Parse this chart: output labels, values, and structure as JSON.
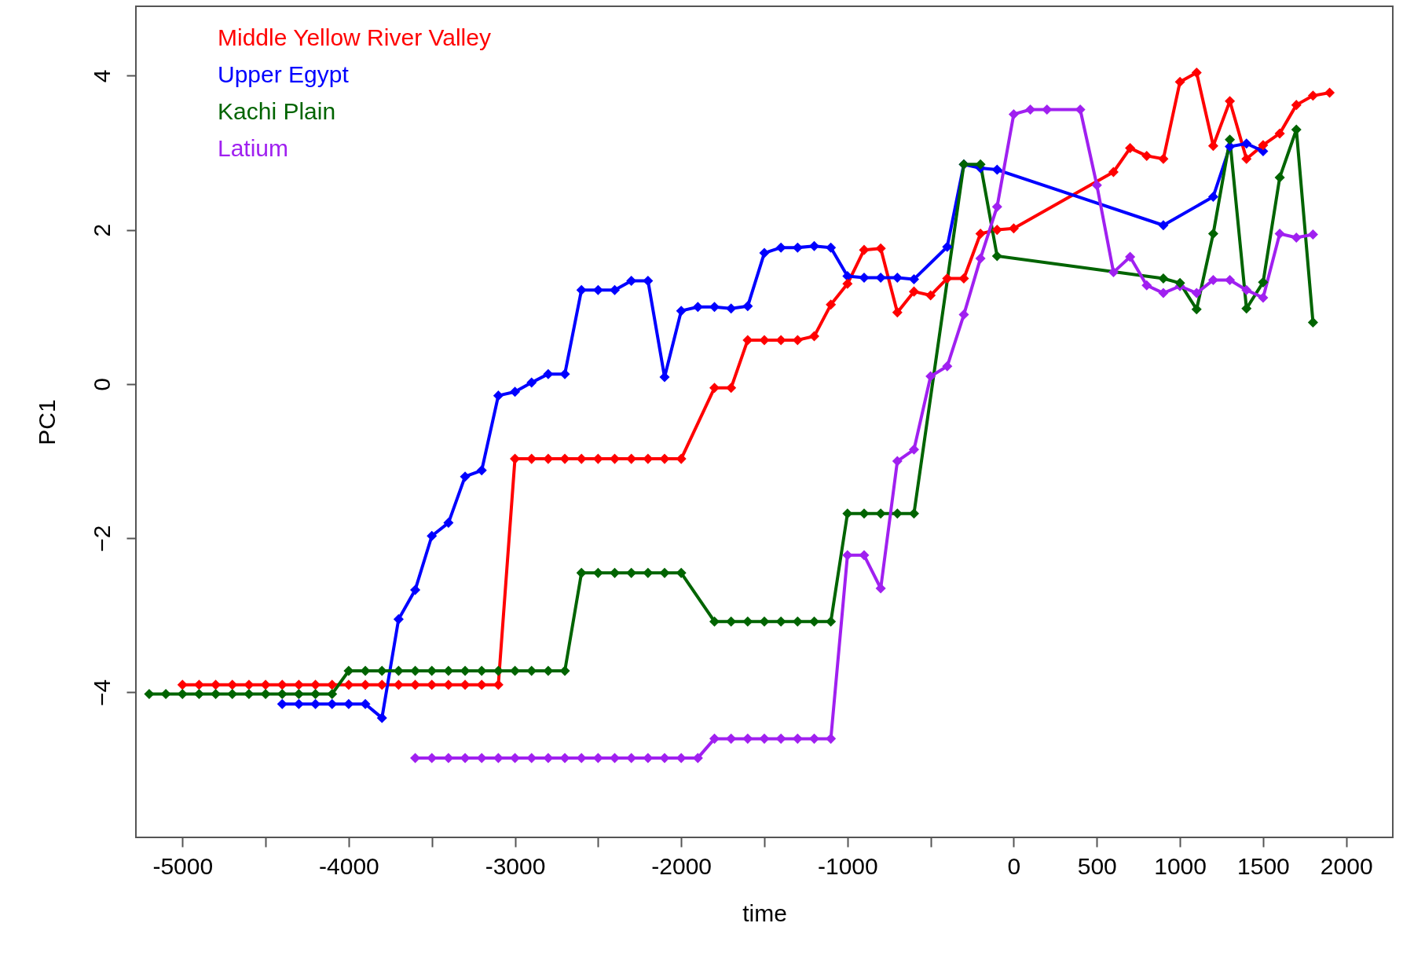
{
  "chart_data": {
    "type": "line",
    "xlabel": "time",
    "ylabel": "PC1",
    "xlim": [
      -5280,
      2280
    ],
    "ylim": [
      -5.88,
      4.9
    ],
    "xticks": [
      -5000,
      {
        "value": -4500,
        "label": null
      },
      -4000,
      {
        "value": -3500,
        "label": null
      },
      -3000,
      {
        "value": -2500,
        "label": null
      },
      -2000,
      {
        "value": -1500,
        "label": null
      },
      -1000,
      {
        "value": -500,
        "label": null
      },
      0,
      500,
      1000,
      1500,
      2000
    ],
    "yticks": [
      -4,
      -2,
      0,
      2,
      4
    ],
    "grid": false,
    "legend": "top left",
    "marker": "diamond",
    "line_style": "solid",
    "series": [
      {
        "name": "Middle Yellow River Valley",
        "color": "#ff0000",
        "x": [
          -5000,
          -4900,
          -4800,
          -4700,
          -4600,
          -4500,
          -4400,
          -4300,
          -4200,
          -4100,
          -4000,
          -3900,
          -3800,
          -3700,
          -3600,
          -3500,
          -3400,
          -3300,
          -3200,
          -3100,
          -3000,
          -2900,
          -2800,
          -2700,
          -2600,
          -2500,
          -2400,
          -2300,
          -2200,
          -2100,
          -2000,
          -1800,
          -1700,
          -1600,
          -1500,
          -1400,
          -1300,
          -1200,
          -1100,
          -1000,
          -900,
          -800,
          -700,
          -600,
          -500,
          -400,
          -300,
          -200,
          -100,
          0,
          600,
          700,
          800,
          900,
          1000,
          1100,
          1200,
          1300,
          1400,
          1500,
          1600,
          1700,
          1800,
          1900
        ],
        "values": [
          -3.9,
          -3.9,
          -3.9,
          -3.9,
          -3.9,
          -3.9,
          -3.9,
          -3.9,
          -3.9,
          -3.9,
          -3.9,
          -3.9,
          -3.9,
          -3.9,
          -3.9,
          -3.9,
          -3.9,
          -3.9,
          -3.9,
          -3.9,
          -0.97,
          -0.97,
          -0.97,
          -0.97,
          -0.97,
          -0.97,
          -0.97,
          -0.97,
          -0.97,
          -0.97,
          -0.97,
          -0.05,
          -0.05,
          0.57,
          0.57,
          0.57,
          0.57,
          0.62,
          1.03,
          1.3,
          1.74,
          1.76,
          0.93,
          1.2,
          1.15,
          1.37,
          1.37,
          1.95,
          2.0,
          2.02,
          2.75,
          3.06,
          2.96,
          2.92,
          3.92,
          4.04,
          3.09,
          3.67,
          2.92,
          3.1,
          3.25,
          3.62,
          3.74,
          3.78
        ]
      },
      {
        "name": "Upper Egypt",
        "color": "#0000ff",
        "x": [
          -4400,
          -4300,
          -4200,
          -4100,
          -4000,
          -3900,
          -3800,
          -3700,
          -3600,
          -3500,
          -3400,
          -3300,
          -3200,
          -3100,
          -3000,
          -2900,
          -2800,
          -2700,
          -2600,
          -2500,
          -2400,
          -2300,
          -2200,
          -2100,
          -2000,
          -1900,
          -1800,
          -1700,
          -1600,
          -1500,
          -1400,
          -1300,
          -1200,
          -1100,
          -1000,
          -900,
          -800,
          -700,
          -600,
          -400,
          -300,
          -200,
          -100,
          900,
          1200,
          1300,
          1400,
          1500
        ],
        "values": [
          -4.15,
          -4.15,
          -4.15,
          -4.15,
          -4.15,
          -4.15,
          -4.33,
          -3.05,
          -2.67,
          -1.97,
          -1.8,
          -1.2,
          -1.12,
          -0.15,
          -0.1,
          0.02,
          0.13,
          0.13,
          1.22,
          1.22,
          1.22,
          1.34,
          1.34,
          0.09,
          0.95,
          1.0,
          1.0,
          0.98,
          1.01,
          1.7,
          1.77,
          1.77,
          1.79,
          1.77,
          1.4,
          1.38,
          1.38,
          1.38,
          1.36,
          1.78,
          2.85,
          2.8,
          2.78,
          2.06,
          2.43,
          3.08,
          3.12,
          3.02
        ]
      },
      {
        "name": "Kachi Plain",
        "color": "#006400",
        "x": [
          -5200,
          -5100,
          -5000,
          -4900,
          -4800,
          -4700,
          -4600,
          -4500,
          -4400,
          -4300,
          -4200,
          -4100,
          -4000,
          -3900,
          -3800,
          -3700,
          -3600,
          -3500,
          -3400,
          -3300,
          -3200,
          -3100,
          -3000,
          -2900,
          -2800,
          -2700,
          -2600,
          -2500,
          -2400,
          -2300,
          -2200,
          -2100,
          -2000,
          -1800,
          -1700,
          -1600,
          -1500,
          -1400,
          -1300,
          -1200,
          -1100,
          -1000,
          -900,
          -800,
          -700,
          -600,
          -300,
          -200,
          -100,
          900,
          1000,
          1100,
          1200,
          1300,
          1400,
          1500,
          1600,
          1700,
          1800
        ],
        "values": [
          -4.02,
          -4.02,
          -4.02,
          -4.02,
          -4.02,
          -4.02,
          -4.02,
          -4.02,
          -4.02,
          -4.02,
          -4.02,
          -4.02,
          -3.72,
          -3.72,
          -3.72,
          -3.72,
          -3.72,
          -3.72,
          -3.72,
          -3.72,
          -3.72,
          -3.72,
          -3.72,
          -3.72,
          -3.72,
          -3.72,
          -2.45,
          -2.45,
          -2.45,
          -2.45,
          -2.45,
          -2.45,
          -2.45,
          -3.08,
          -3.08,
          -3.08,
          -3.08,
          -3.08,
          -3.08,
          -3.08,
          -3.08,
          -1.68,
          -1.68,
          -1.68,
          -1.68,
          -1.68,
          2.85,
          2.85,
          1.66,
          1.37,
          1.31,
          0.97,
          1.95,
          3.17,
          0.98,
          1.32,
          2.68,
          3.3,
          0.8
        ]
      },
      {
        "name": "Latium",
        "color": "#a020f0",
        "x": [
          -3600,
          -3500,
          -3400,
          -3300,
          -3200,
          -3100,
          -3000,
          -2900,
          -2800,
          -2700,
          -2600,
          -2500,
          -2400,
          -2300,
          -2200,
          -2100,
          -2000,
          -1900,
          -1800,
          -1700,
          -1600,
          -1500,
          -1400,
          -1300,
          -1200,
          -1100,
          -1000,
          -900,
          -800,
          -700,
          -600,
          -500,
          -400,
          -300,
          -200,
          -100,
          0,
          100,
          200,
          400,
          500,
          600,
          700,
          800,
          900,
          1000,
          1100,
          1200,
          1300,
          1400,
          1500,
          1600,
          1700,
          1800
        ],
        "values": [
          -4.85,
          -4.85,
          -4.85,
          -4.85,
          -4.85,
          -4.85,
          -4.85,
          -4.85,
          -4.85,
          -4.85,
          -4.85,
          -4.85,
          -4.85,
          -4.85,
          -4.85,
          -4.85,
          -4.85,
          -4.85,
          -4.6,
          -4.6,
          -4.6,
          -4.6,
          -4.6,
          -4.6,
          -4.6,
          -4.6,
          -2.22,
          -2.22,
          -2.65,
          -1.0,
          -0.85,
          0.1,
          0.23,
          0.9,
          1.63,
          2.3,
          3.5,
          3.56,
          3.56,
          3.56,
          2.58,
          1.45,
          1.65,
          1.28,
          1.18,
          1.27,
          1.18,
          1.35,
          1.35,
          1.22,
          1.12,
          1.95,
          1.9,
          1.94
        ]
      }
    ]
  }
}
